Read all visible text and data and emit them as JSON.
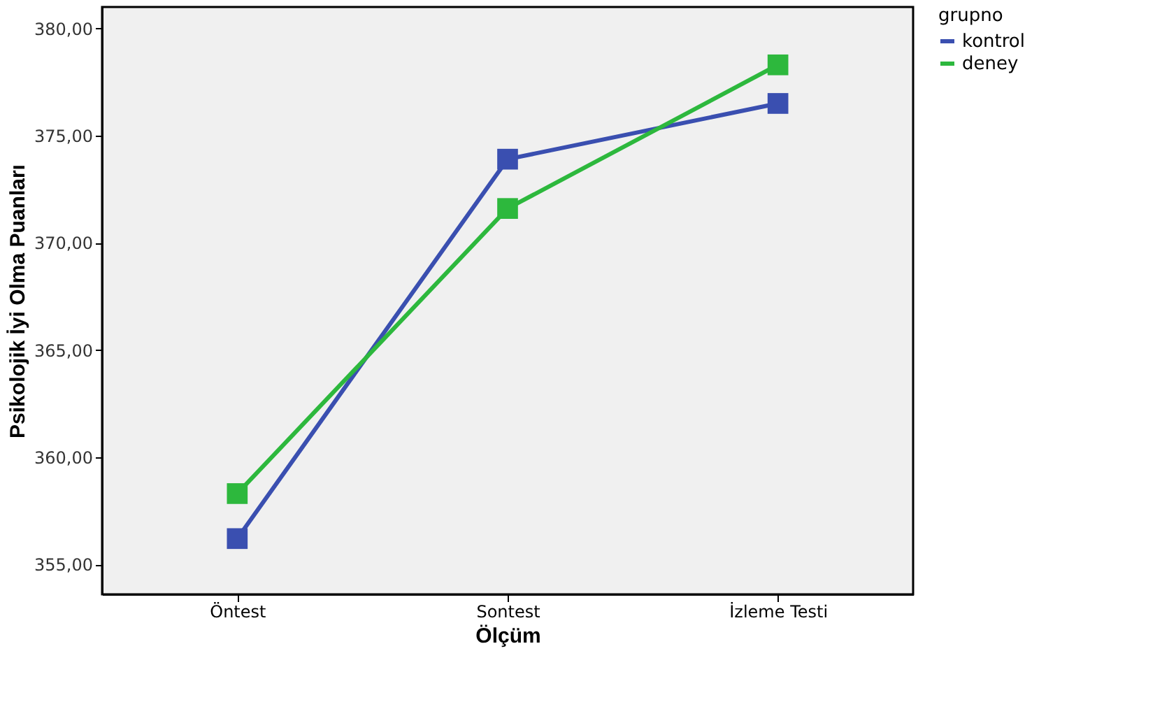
{
  "chart_data": {
    "type": "line",
    "xlabel": "Ölçüm",
    "ylabel": "Psikolojik İyi Olma Puanları",
    "legend_title": "grupno",
    "legend": "top right",
    "marker": "square",
    "grid": false,
    "categories": [
      "Öntest",
      "Sontest",
      "İzleme Testi"
    ],
    "series": [
      {
        "name": "kontrol",
        "color": "#3a4fb0",
        "values": [
          356.2,
          373.9,
          376.5
        ]
      },
      {
        "name": "deney",
        "color": "#2db83d",
        "values": [
          358.3,
          371.6,
          378.3
        ]
      }
    ],
    "ylim": [
      353.6,
      381.0
    ],
    "yticks": [
      {
        "value": 355,
        "label": "355,00"
      },
      {
        "value": 360,
        "label": "360,00"
      },
      {
        "value": 365,
        "label": "365,00"
      },
      {
        "value": 370,
        "label": "370,00"
      },
      {
        "value": 375,
        "label": "375,00"
      },
      {
        "value": 380,
        "label": "380,00"
      }
    ]
  }
}
